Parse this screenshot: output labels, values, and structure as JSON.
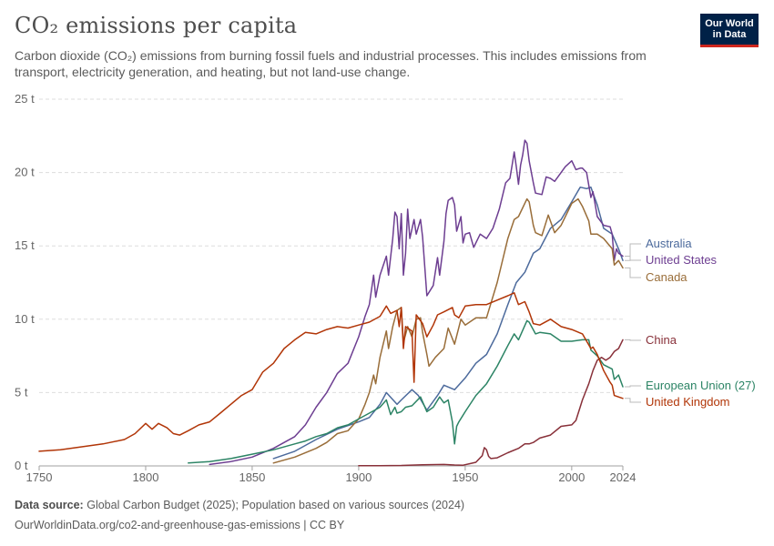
{
  "header": {
    "title": "CO₂ emissions per capita",
    "subtitle": "Carbon dioxide (CO₂) emissions from burning fossil fuels and industrial processes. This includes emissions from transport, electricity generation, and heating, but not land-use change.",
    "logo_line1": "Our World",
    "logo_line2": "in Data"
  },
  "footer": {
    "source_label": "Data source:",
    "source_text": "Global Carbon Budget (2025); Population based on various sources (2024)",
    "url_text": "OurWorldinData.org/co2-and-greenhouse-gas-emissions | CC BY"
  },
  "colors": {
    "Australia": "#4c6a9c",
    "United States": "#6d3e91",
    "Canada": "#996d39",
    "China": "#883039",
    "European Union (27)": "#2c8465",
    "United Kingdom": "#b13507"
  },
  "chart_data": {
    "type": "line",
    "title": "CO₂ emissions per capita",
    "xlim": [
      1750,
      2024
    ],
    "ylim": [
      0,
      25
    ],
    "x_ticks": [
      1750,
      1800,
      1850,
      1900,
      1950,
      2000,
      2024
    ],
    "y_ticks": [
      0,
      5,
      10,
      15,
      20,
      25
    ],
    "y_tick_labels": [
      "0 t",
      "5 t",
      "10 t",
      "15 t",
      "20 t",
      "25 t"
    ],
    "grid": "horizontal dashed",
    "legend": "inline labels at right end",
    "series": [
      {
        "name": "Australia",
        "x": [
          1860,
          1870,
          1880,
          1890,
          1900,
          1905,
          1910,
          1913,
          1918,
          1920,
          1925,
          1928,
          1932,
          1937,
          1940,
          1945,
          1950,
          1955,
          1960,
          1965,
          1970,
          1974,
          1978,
          1982,
          1985,
          1990,
          1995,
          2000,
          2004,
          2007,
          2009,
          2012,
          2015,
          2019,
          2022,
          2024
        ],
        "y": [
          0.5,
          1.0,
          1.8,
          2.5,
          3.0,
          3.3,
          4.2,
          5.0,
          4.2,
          4.5,
          5.2,
          4.8,
          3.8,
          4.8,
          5.5,
          5.2,
          6.0,
          7.0,
          7.6,
          9.0,
          11.0,
          12.5,
          13.2,
          14.5,
          14.8,
          16.2,
          16.8,
          18.0,
          19.0,
          18.9,
          19.0,
          17.8,
          16.2,
          15.8,
          14.8,
          14.0
        ]
      },
      {
        "name": "United States",
        "x": [
          1830,
          1840,
          1850,
          1860,
          1870,
          1875,
          1880,
          1885,
          1890,
          1895,
          1900,
          1903,
          1905,
          1907,
          1908,
          1910,
          1913,
          1914,
          1916,
          1917,
          1918,
          1919,
          1920,
          1921,
          1922,
          1923,
          1924,
          1926,
          1927,
          1929,
          1930,
          1932,
          1935,
          1937,
          1938,
          1940,
          1941,
          1942,
          1944,
          1945,
          1946,
          1948,
          1949,
          1950,
          1952,
          1954,
          1957,
          1960,
          1963,
          1966,
          1969,
          1971,
          1972,
          1973,
          1974,
          1975,
          1976,
          1977,
          1978,
          1979,
          1980,
          1982,
          1983,
          1986,
          1988,
          1990,
          1992,
          1995,
          1997,
          2000,
          2002,
          2004,
          2005,
          2007,
          2009,
          2010,
          2012,
          2015,
          2018,
          2019,
          2020,
          2021,
          2022,
          2024
        ],
        "y": [
          0.1,
          0.3,
          0.6,
          1.2,
          2.0,
          2.8,
          4.0,
          5.0,
          6.3,
          7.0,
          8.8,
          10.2,
          11.0,
          13.0,
          11.5,
          13.0,
          14.3,
          13.0,
          15.5,
          17.3,
          17.0,
          14.8,
          17.2,
          13.0,
          14.5,
          17.5,
          15.5,
          16.8,
          15.8,
          16.8,
          15.6,
          11.6,
          12.3,
          14.2,
          13.0,
          15.3,
          17.2,
          18.1,
          18.3,
          17.8,
          16.0,
          17.0,
          15.2,
          15.8,
          15.9,
          14.9,
          15.8,
          15.5,
          16.2,
          17.5,
          19.3,
          19.6,
          20.5,
          21.4,
          20.4,
          19.2,
          20.5,
          21.2,
          22.2,
          22.0,
          20.8,
          19.3,
          18.6,
          18.5,
          19.7,
          19.6,
          19.4,
          20.0,
          20.4,
          20.8,
          20.2,
          20.3,
          20.3,
          20.0,
          18.3,
          18.7,
          17.0,
          16.4,
          16.3,
          15.8,
          14.0,
          14.8,
          14.5,
          14.3
        ]
      },
      {
        "name": "Canada",
        "x": [
          1860,
          1870,
          1880,
          1885,
          1890,
          1895,
          1900,
          1903,
          1905,
          1907,
          1908,
          1910,
          1913,
          1914,
          1916,
          1918,
          1920,
          1921,
          1923,
          1925,
          1927,
          1929,
          1930,
          1932,
          1933,
          1936,
          1940,
          1942,
          1945,
          1948,
          1950,
          1955,
          1960,
          1965,
          1970,
          1973,
          1975,
          1979,
          1980,
          1982,
          1983,
          1986,
          1989,
          1992,
          1995,
          2000,
          2003,
          2005,
          2008,
          2009,
          2012,
          2015,
          2019,
          2020,
          2022,
          2024
        ],
        "y": [
          0.2,
          0.6,
          1.2,
          1.6,
          2.2,
          2.4,
          3.2,
          4.2,
          5.0,
          6.2,
          5.6,
          7.4,
          9.2,
          8.0,
          9.5,
          10.6,
          10.8,
          8.4,
          9.5,
          8.8,
          10.0,
          10.1,
          9.1,
          7.6,
          6.8,
          7.4,
          8.0,
          9.4,
          8.3,
          10.0,
          9.6,
          10.1,
          10.1,
          12.5,
          15.5,
          16.8,
          17.0,
          18.2,
          18.0,
          16.4,
          15.9,
          15.7,
          17.1,
          15.9,
          16.4,
          17.9,
          18.2,
          17.7,
          16.7,
          15.8,
          15.8,
          15.5,
          14.8,
          13.7,
          14.0,
          13.5
        ]
      },
      {
        "name": "China",
        "x": [
          1900,
          1910,
          1920,
          1930,
          1940,
          1945,
          1949,
          1952,
          1955,
          1958,
          1959,
          1960,
          1961,
          1962,
          1965,
          1970,
          1975,
          1978,
          1980,
          1982,
          1985,
          1990,
          1995,
          2000,
          2002,
          2005,
          2008,
          2010,
          2012,
          2014,
          2016,
          2018,
          2020,
          2022,
          2024
        ],
        "y": [
          0.01,
          0.02,
          0.03,
          0.08,
          0.1,
          0.06,
          0.05,
          0.15,
          0.25,
          0.7,
          1.25,
          1.1,
          0.65,
          0.5,
          0.55,
          0.9,
          1.2,
          1.5,
          1.5,
          1.6,
          1.9,
          2.1,
          2.7,
          2.8,
          3.1,
          4.5,
          5.6,
          6.5,
          7.2,
          7.4,
          7.2,
          7.4,
          7.8,
          8.0,
          8.6
        ]
      },
      {
        "name": "European Union (27)",
        "x": [
          1820,
          1830,
          1840,
          1850,
          1860,
          1870,
          1875,
          1880,
          1885,
          1890,
          1895,
          1900,
          1905,
          1910,
          1913,
          1915,
          1917,
          1918,
          1920,
          1922,
          1925,
          1929,
          1932,
          1935,
          1938,
          1940,
          1942,
          1944,
          1945,
          1946,
          1947,
          1950,
          1955,
          1960,
          1965,
          1970,
          1973,
          1975,
          1979,
          1980,
          1983,
          1985,
          1990,
          1995,
          2000,
          2005,
          2008,
          2009,
          2012,
          2015,
          2019,
          2020,
          2022,
          2024
        ],
        "y": [
          0.2,
          0.3,
          0.5,
          0.8,
          1.1,
          1.5,
          1.7,
          2.0,
          2.2,
          2.6,
          2.8,
          3.2,
          3.6,
          4.0,
          4.5,
          3.5,
          4.0,
          3.6,
          3.7,
          4.0,
          4.1,
          4.7,
          3.7,
          4.0,
          4.7,
          4.3,
          4.5,
          3.0,
          1.5,
          2.7,
          3.0,
          3.7,
          4.8,
          5.6,
          6.8,
          8.2,
          9.0,
          8.6,
          9.9,
          9.8,
          9.0,
          9.1,
          9.0,
          8.5,
          8.5,
          8.6,
          8.6,
          7.9,
          7.5,
          6.9,
          6.6,
          5.9,
          6.2,
          5.4
        ]
      },
      {
        "name": "United Kingdom",
        "x": [
          1750,
          1760,
          1770,
          1780,
          1790,
          1795,
          1800,
          1803,
          1806,
          1810,
          1813,
          1816,
          1820,
          1825,
          1830,
          1835,
          1840,
          1845,
          1850,
          1855,
          1860,
          1865,
          1870,
          1875,
          1880,
          1885,
          1890,
          1895,
          1900,
          1905,
          1910,
          1913,
          1915,
          1918,
          1919,
          1920,
          1921,
          1922,
          1925,
          1926,
          1927,
          1930,
          1932,
          1935,
          1937,
          1940,
          1944,
          1945,
          1947,
          1950,
          1955,
          1960,
          1965,
          1970,
          1973,
          1975,
          1978,
          1980,
          1982,
          1985,
          1990,
          1995,
          2000,
          2005,
          2009,
          2010,
          2012,
          2015,
          2018,
          2019,
          2020,
          2022,
          2024
        ],
        "y": [
          1.0,
          1.1,
          1.3,
          1.5,
          1.8,
          2.2,
          2.9,
          2.5,
          2.9,
          2.6,
          2.2,
          2.1,
          2.4,
          2.8,
          3.0,
          3.6,
          4.2,
          4.8,
          5.2,
          6.4,
          7.0,
          8.0,
          8.6,
          9.1,
          9.0,
          9.3,
          9.5,
          9.4,
          9.6,
          9.8,
          10.2,
          10.9,
          10.4,
          10.6,
          9.5,
          10.8,
          8.0,
          9.5,
          9.2,
          5.7,
          10.3,
          9.7,
          8.8,
          9.6,
          10.3,
          10.5,
          10.8,
          10.3,
          10.1,
          10.9,
          11.0,
          11.0,
          11.3,
          11.6,
          11.8,
          11.0,
          11.2,
          10.5,
          9.7,
          9.6,
          10.0,
          9.5,
          9.3,
          9.0,
          8.0,
          8.1,
          7.6,
          6.5,
          5.7,
          5.5,
          4.8,
          4.7,
          4.6
        ]
      }
    ],
    "label_order": [
      "Australia",
      "United States",
      "Canada",
      "China",
      "European Union (27)",
      "United Kingdom"
    ]
  }
}
